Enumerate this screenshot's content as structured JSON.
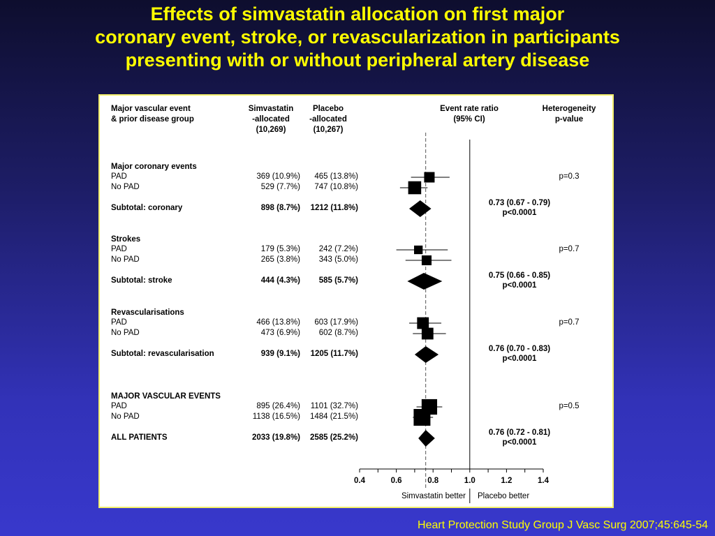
{
  "title": [
    "Effects of simvastatin allocation on first major",
    "coronary event, stroke, or revascularization in participants",
    "presenting with or without peripheral artery disease"
  ],
  "citation": "Heart Protection Study Group J Vasc Surg 2007;45:645-54",
  "colors": {
    "title": "#ffff00",
    "panel_border": "#f2ee6a",
    "marks": "#000000"
  },
  "chart_data": {
    "type": "forest",
    "headers": {
      "group": [
        "Major vascular event",
        "& prior disease group"
      ],
      "simva": [
        "Simvastatin",
        "-allocated",
        "(10,269)"
      ],
      "placebo": [
        "Placebo",
        "-allocated",
        "(10,267)"
      ],
      "ratio": [
        "Event rate ratio",
        "(95% CI)"
      ],
      "het": [
        "Heterogeneity",
        "p-value"
      ]
    },
    "xlim": [
      0.4,
      1.4
    ],
    "xticks": [
      "0.4",
      "0.6",
      "0.8",
      "1.0",
      "1.2",
      "1.4"
    ],
    "reference_line": 1.0,
    "overall_line": 0.76,
    "xlabel_left": "Simvastatin better",
    "xlabel_right": "Placebo better",
    "sections": [
      {
        "title": "Major coronary events",
        "rows": [
          {
            "label": "PAD",
            "simva": "369 (10.9%)",
            "placebo": "465 (13.8%)",
            "est": 0.78,
            "lo": 0.68,
            "hi": 0.89,
            "weight": 0.5
          },
          {
            "label": "No PAD",
            "simva": "529 (7.7%)",
            "placebo": "747 (10.8%)",
            "est": 0.7,
            "lo": 0.62,
            "hi": 0.77,
            "weight": 0.7
          }
        ],
        "het": "p=0.3",
        "subtotal": {
          "label": "Subtotal: coronary",
          "simva": "898 (8.7%)",
          "placebo": "1212 (11.8%)",
          "est": 0.73,
          "lo": 0.67,
          "hi": 0.79,
          "ci_text": "0.73 (0.67 - 0.79)",
          "p": "p<0.0001"
        }
      },
      {
        "title": "Strokes",
        "rows": [
          {
            "label": "PAD",
            "simva": "179 (5.3%)",
            "placebo": "242 (7.2%)",
            "est": 0.72,
            "lo": 0.6,
            "hi": 0.88,
            "weight": 0.35
          },
          {
            "label": "No PAD",
            "simva": "265 (3.8%)",
            "placebo": "343 (5.0%)",
            "est": 0.765,
            "lo": 0.65,
            "hi": 0.9,
            "weight": 0.45
          }
        ],
        "het": "p=0.7",
        "subtotal": {
          "label": "Subtotal: stroke",
          "simva": "444 (4.3%)",
          "placebo": "585 (5.7%)",
          "est": 0.75,
          "lo": 0.66,
          "hi": 0.85,
          "ci_text": "0.75 (0.66 - 0.85)",
          "p": "p<0.0001"
        }
      },
      {
        "title": "Revascularisations",
        "rows": [
          {
            "label": "PAD",
            "simva": "466 (13.8%)",
            "placebo": "603 (17.9%)",
            "est": 0.745,
            "lo": 0.67,
            "hi": 0.845,
            "weight": 0.6
          },
          {
            "label": "No PAD",
            "simva": "473 (6.9%)",
            "placebo": "602 (8.7%)",
            "est": 0.77,
            "lo": 0.69,
            "hi": 0.87,
            "weight": 0.6
          }
        ],
        "het": "p=0.7",
        "subtotal": {
          "label": "Subtotal: revascularisation",
          "simva": "939 (9.1%)",
          "placebo": "1205 (11.7%)",
          "est": 0.76,
          "lo": 0.7,
          "hi": 0.83,
          "ci_text": "0.76 (0.70 - 0.83)",
          "p": "p<0.0001"
        }
      },
      {
        "title": "MAJOR VASCULAR EVENTS",
        "rows": [
          {
            "label": "PAD",
            "simva": "895 (26.4%)",
            "placebo": "1101 (32.7%)",
            "est": 0.78,
            "lo": 0.71,
            "hi": 0.85,
            "weight": 0.9
          },
          {
            "label": "No PAD",
            "simva": "1138 (16.5%)",
            "placebo": "1484 (21.5%)",
            "est": 0.74,
            "lo": 0.69,
            "hi": 0.8,
            "weight": 1.0
          }
        ],
        "het": "p=0.5",
        "subtotal": {
          "label": "ALL PATIENTS",
          "simva": "2033 (19.8%)",
          "placebo": "2585 (25.2%)",
          "est": 0.76,
          "lo": 0.72,
          "hi": 0.81,
          "ci_text": "0.76 (0.72 - 0.81)",
          "p": "p<0.0001"
        }
      }
    ]
  }
}
